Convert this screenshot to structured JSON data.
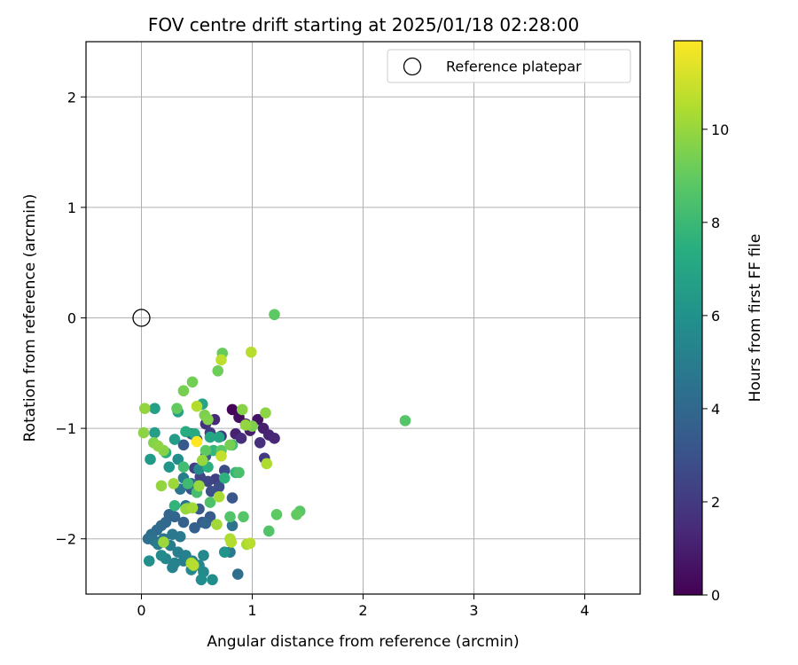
{
  "chart_data": {
    "type": "scatter",
    "title": "FOV centre drift starting at 2025/01/18 02:28:00",
    "xlabel": "Angular distance from reference (arcmin)",
    "ylabel": "Rotation from reference (arcmin)",
    "xlim": [
      -0.5,
      4.5
    ],
    "ylim": [
      -2.5,
      2.5
    ],
    "xticks": [
      0,
      1,
      2,
      3,
      4
    ],
    "yticks": [
      -2,
      -1,
      0,
      1,
      2
    ],
    "xtick_labels": [
      "0",
      "1",
      "2",
      "3",
      "4"
    ],
    "ytick_labels": [
      "−2",
      "−1",
      "0",
      "1",
      "2"
    ],
    "grid": true,
    "legend": {
      "placement": "top-right",
      "entries": [
        {
          "label": "Reference platepar",
          "marker": "open-circle",
          "color": "#000000"
        }
      ]
    },
    "reference_point": {
      "x": 0,
      "y": 0
    },
    "colorbar": {
      "label": "Hours from first FF file",
      "colormap": "viridis",
      "range": [
        0,
        11.9
      ],
      "ticks": [
        0,
        2,
        4,
        6,
        8,
        10
      ],
      "tick_labels": [
        "0",
        "2",
        "4",
        "6",
        "8",
        "10"
      ]
    },
    "series": [
      {
        "points": [
          {
            "x": 0.82,
            "y": -0.83,
            "t": 0.1
          },
          {
            "x": 0.88,
            "y": -0.9,
            "t": 0.4
          },
          {
            "x": 1.05,
            "y": -0.92,
            "t": 0.6
          },
          {
            "x": 0.94,
            "y": -0.96,
            "t": 0.8
          },
          {
            "x": 1.1,
            "y": -1.0,
            "t": 1.0
          },
          {
            "x": 0.98,
            "y": -1.02,
            "t": 0.9
          },
          {
            "x": 1.15,
            "y": -1.06,
            "t": 1.2
          },
          {
            "x": 1.2,
            "y": -1.09,
            "t": 1.3
          },
          {
            "x": 0.9,
            "y": -1.09,
            "t": 1.5
          },
          {
            "x": 1.07,
            "y": -1.13,
            "t": 1.6
          },
          {
            "x": 0.85,
            "y": -1.05,
            "t": 1.1
          },
          {
            "x": 0.66,
            "y": -0.92,
            "t": 1.4
          },
          {
            "x": 0.58,
            "y": -0.96,
            "t": 1.7
          },
          {
            "x": 0.72,
            "y": -1.07,
            "t": 1.9
          },
          {
            "x": 1.11,
            "y": -1.27,
            "t": 2.0
          },
          {
            "x": 0.62,
            "y": -1.04,
            "t": 2.1
          },
          {
            "x": 0.48,
            "y": -1.36,
            "t": 2.2
          },
          {
            "x": 0.53,
            "y": -1.44,
            "t": 2.4
          },
          {
            "x": 0.6,
            "y": -1.48,
            "t": 2.5
          },
          {
            "x": 0.67,
            "y": -1.46,
            "t": 2.3
          },
          {
            "x": 0.75,
            "y": -1.38,
            "t": 2.7
          },
          {
            "x": 0.7,
            "y": -1.53,
            "t": 2.8
          },
          {
            "x": 0.63,
            "y": -1.57,
            "t": 2.9
          },
          {
            "x": 0.45,
            "y": -1.55,
            "t": 3.0
          },
          {
            "x": 0.82,
            "y": -1.63,
            "t": 3.2
          },
          {
            "x": 0.52,
            "y": -1.73,
            "t": 3.3
          },
          {
            "x": 0.62,
            "y": -1.8,
            "t": 3.4
          },
          {
            "x": 0.55,
            "y": -1.85,
            "t": 3.5
          },
          {
            "x": 0.48,
            "y": -1.9,
            "t": 3.6
          },
          {
            "x": 0.38,
            "y": -1.85,
            "t": 3.7
          },
          {
            "x": 0.3,
            "y": -1.8,
            "t": 3.8
          },
          {
            "x": 0.25,
            "y": -1.78,
            "t": 3.9
          },
          {
            "x": 0.22,
            "y": -1.85,
            "t": 4.0
          },
          {
            "x": 0.18,
            "y": -1.88,
            "t": 4.1
          },
          {
            "x": 0.14,
            "y": -1.92,
            "t": 4.2
          },
          {
            "x": 0.09,
            "y": -1.96,
            "t": 4.3
          },
          {
            "x": 0.06,
            "y": -2.0,
            "t": 4.4
          },
          {
            "x": 0.12,
            "y": -2.02,
            "t": 4.5
          },
          {
            "x": 0.2,
            "y": -2.0,
            "t": 4.6
          },
          {
            "x": 0.28,
            "y": -1.96,
            "t": 4.7
          },
          {
            "x": 0.35,
            "y": -1.98,
            "t": 4.8
          },
          {
            "x": 0.15,
            "y": -2.05,
            "t": 4.9
          },
          {
            "x": 0.26,
            "y": -2.06,
            "t": 5.0
          },
          {
            "x": 0.33,
            "y": -2.12,
            "t": 5.1
          },
          {
            "x": 0.4,
            "y": -2.15,
            "t": 5.2
          },
          {
            "x": 0.46,
            "y": -2.2,
            "t": 5.3
          },
          {
            "x": 0.52,
            "y": -2.24,
            "t": 5.4
          },
          {
            "x": 0.45,
            "y": -2.28,
            "t": 5.5
          },
          {
            "x": 0.56,
            "y": -2.3,
            "t": 5.6
          },
          {
            "x": 0.54,
            "y": -2.37,
            "t": 5.7
          },
          {
            "x": 0.64,
            "y": -2.37,
            "t": 5.8
          },
          {
            "x": 0.87,
            "y": -2.32,
            "t": 4.3
          },
          {
            "x": 0.38,
            "y": -2.2,
            "t": 5.0
          },
          {
            "x": 0.3,
            "y": -2.22,
            "t": 5.2
          },
          {
            "x": 0.22,
            "y": -2.18,
            "t": 5.4
          },
          {
            "x": 0.18,
            "y": -2.15,
            "t": 5.6
          },
          {
            "x": 0.07,
            "y": -2.2,
            "t": 5.9
          },
          {
            "x": 0.28,
            "y": -2.26,
            "t": 5.3
          },
          {
            "x": 0.56,
            "y": -2.15,
            "t": 5.5
          },
          {
            "x": 0.75,
            "y": -2.12,
            "t": 6.1
          },
          {
            "x": 0.8,
            "y": -2.12,
            "t": 4.8
          },
          {
            "x": 0.82,
            "y": -1.88,
            "t": 4.5
          },
          {
            "x": 0.58,
            "y": -1.86,
            "t": 3.9
          },
          {
            "x": 0.4,
            "y": -1.7,
            "t": 4.2
          },
          {
            "x": 0.35,
            "y": -1.55,
            "t": 4.6
          },
          {
            "x": 0.45,
            "y": -1.5,
            "t": 4.0
          },
          {
            "x": 0.58,
            "y": -1.25,
            "t": 3.6
          },
          {
            "x": 0.38,
            "y": -1.15,
            "t": 3.3
          },
          {
            "x": 0.5,
            "y": -1.1,
            "t": 3.1
          },
          {
            "x": 0.45,
            "y": -1.05,
            "t": 3.5
          },
          {
            "x": 0.38,
            "y": -1.45,
            "t": 5.0
          },
          {
            "x": 0.52,
            "y": -1.37,
            "t": 5.6
          },
          {
            "x": 0.33,
            "y": -1.28,
            "t": 5.8
          },
          {
            "x": 0.25,
            "y": -1.35,
            "t": 6.2
          },
          {
            "x": 0.08,
            "y": -1.28,
            "t": 6.4
          },
          {
            "x": 0.3,
            "y": -1.1,
            "t": 6.5
          },
          {
            "x": 0.12,
            "y": -1.04,
            "t": 6.6
          },
          {
            "x": 0.12,
            "y": -0.82,
            "t": 6.7
          },
          {
            "x": 0.33,
            "y": -0.85,
            "t": 6.8
          },
          {
            "x": 0.55,
            "y": -0.78,
            "t": 6.9
          },
          {
            "x": 0.7,
            "y": -1.08,
            "t": 7.0
          },
          {
            "x": 0.62,
            "y": -1.08,
            "t": 7.1
          },
          {
            "x": 0.48,
            "y": -1.05,
            "t": 7.2
          },
          {
            "x": 0.4,
            "y": -1.03,
            "t": 7.3
          },
          {
            "x": 0.22,
            "y": -1.22,
            "t": 7.4
          },
          {
            "x": 0.6,
            "y": -1.35,
            "t": 7.5
          },
          {
            "x": 0.75,
            "y": -1.45,
            "t": 7.6
          },
          {
            "x": 0.65,
            "y": -1.2,
            "t": 7.8
          },
          {
            "x": 0.85,
            "y": -1.4,
            "t": 7.9
          },
          {
            "x": 0.82,
            "y": -1.15,
            "t": 8.0
          },
          {
            "x": 0.3,
            "y": -1.7,
            "t": 7.7
          },
          {
            "x": 0.38,
            "y": -1.35,
            "t": 8.2
          },
          {
            "x": 0.42,
            "y": -1.5,
            "t": 8.1
          },
          {
            "x": 0.42,
            "y": -1.72,
            "t": 8.4
          },
          {
            "x": 0.5,
            "y": -1.58,
            "t": 8.3
          },
          {
            "x": 0.62,
            "y": -1.67,
            "t": 8.5
          },
          {
            "x": 0.8,
            "y": -1.8,
            "t": 8.6
          },
          {
            "x": 0.92,
            "y": -1.8,
            "t": 8.7
          },
          {
            "x": 0.72,
            "y": -1.2,
            "t": 8.8
          },
          {
            "x": 0.88,
            "y": -1.4,
            "t": 8.4
          },
          {
            "x": 0.58,
            "y": -1.2,
            "t": 8.9
          },
          {
            "x": 1.15,
            "y": -1.93,
            "t": 8.6
          },
          {
            "x": 1.22,
            "y": -1.78,
            "t": 8.9
          },
          {
            "x": 1.4,
            "y": -1.78,
            "t": 9.0
          },
          {
            "x": 1.43,
            "y": -1.75,
            "t": 8.8
          },
          {
            "x": 1.2,
            "y": 0.03,
            "t": 8.9
          },
          {
            "x": 2.38,
            "y": -0.93,
            "t": 8.7
          },
          {
            "x": 0.32,
            "y": -0.82,
            "t": 9.0
          },
          {
            "x": 0.73,
            "y": -0.32,
            "t": 9.1
          },
          {
            "x": 0.69,
            "y": -0.48,
            "t": 9.2
          },
          {
            "x": 0.46,
            "y": -0.58,
            "t": 9.3
          },
          {
            "x": 0.38,
            "y": -0.66,
            "t": 9.4
          },
          {
            "x": 0.57,
            "y": -0.88,
            "t": 9.5
          },
          {
            "x": 0.6,
            "y": -0.92,
            "t": 9.6
          },
          {
            "x": 0.8,
            "y": -1.15,
            "t": 9.4
          },
          {
            "x": 0.91,
            "y": -0.83,
            "t": 9.7
          },
          {
            "x": 1.12,
            "y": -0.86,
            "t": 9.8
          },
          {
            "x": 1.0,
            "y": -0.98,
            "t": 9.5
          },
          {
            "x": 0.94,
            "y": -0.97,
            "t": 9.9
          },
          {
            "x": 0.11,
            "y": -1.13,
            "t": 9.6
          },
          {
            "x": 0.15,
            "y": -1.16,
            "t": 9.8
          },
          {
            "x": 0.2,
            "y": -1.2,
            "t": 9.7
          },
          {
            "x": 0.03,
            "y": -0.82,
            "t": 9.9
          },
          {
            "x": 0.02,
            "y": -1.04,
            "t": 9.8
          },
          {
            "x": 0.55,
            "y": -1.29,
            "t": 10.0
          },
          {
            "x": 0.18,
            "y": -1.52,
            "t": 9.9
          },
          {
            "x": 0.29,
            "y": -1.5,
            "t": 10.1
          },
          {
            "x": 0.52,
            "y": -1.52,
            "t": 10.0
          },
          {
            "x": 0.46,
            "y": -1.72,
            "t": 10.2
          },
          {
            "x": 0.7,
            "y": -1.62,
            "t": 10.3
          },
          {
            "x": 0.68,
            "y": -1.87,
            "t": 10.2
          },
          {
            "x": 0.8,
            "y": -2.0,
            "t": 10.4
          },
          {
            "x": 0.81,
            "y": -2.03,
            "t": 10.5
          },
          {
            "x": 0.95,
            "y": -2.05,
            "t": 10.3
          },
          {
            "x": 0.98,
            "y": -2.04,
            "t": 10.6
          },
          {
            "x": 0.2,
            "y": -2.03,
            "t": 10.1
          },
          {
            "x": 0.45,
            "y": -2.22,
            "t": 10.4
          },
          {
            "x": 0.47,
            "y": -2.24,
            "t": 10.6
          },
          {
            "x": 0.5,
            "y": -0.8,
            "t": 10.5
          },
          {
            "x": 0.72,
            "y": -0.38,
            "t": 10.7
          },
          {
            "x": 0.99,
            "y": -0.31,
            "t": 10.6
          },
          {
            "x": 1.13,
            "y": -1.32,
            "t": 10.4
          },
          {
            "x": 0.72,
            "y": -1.25,
            "t": 10.8
          },
          {
            "x": 0.5,
            "y": -1.12,
            "t": 11.9
          },
          {
            "x": 0.4,
            "y": -1.73,
            "t": 10.0
          }
        ]
      }
    ]
  }
}
